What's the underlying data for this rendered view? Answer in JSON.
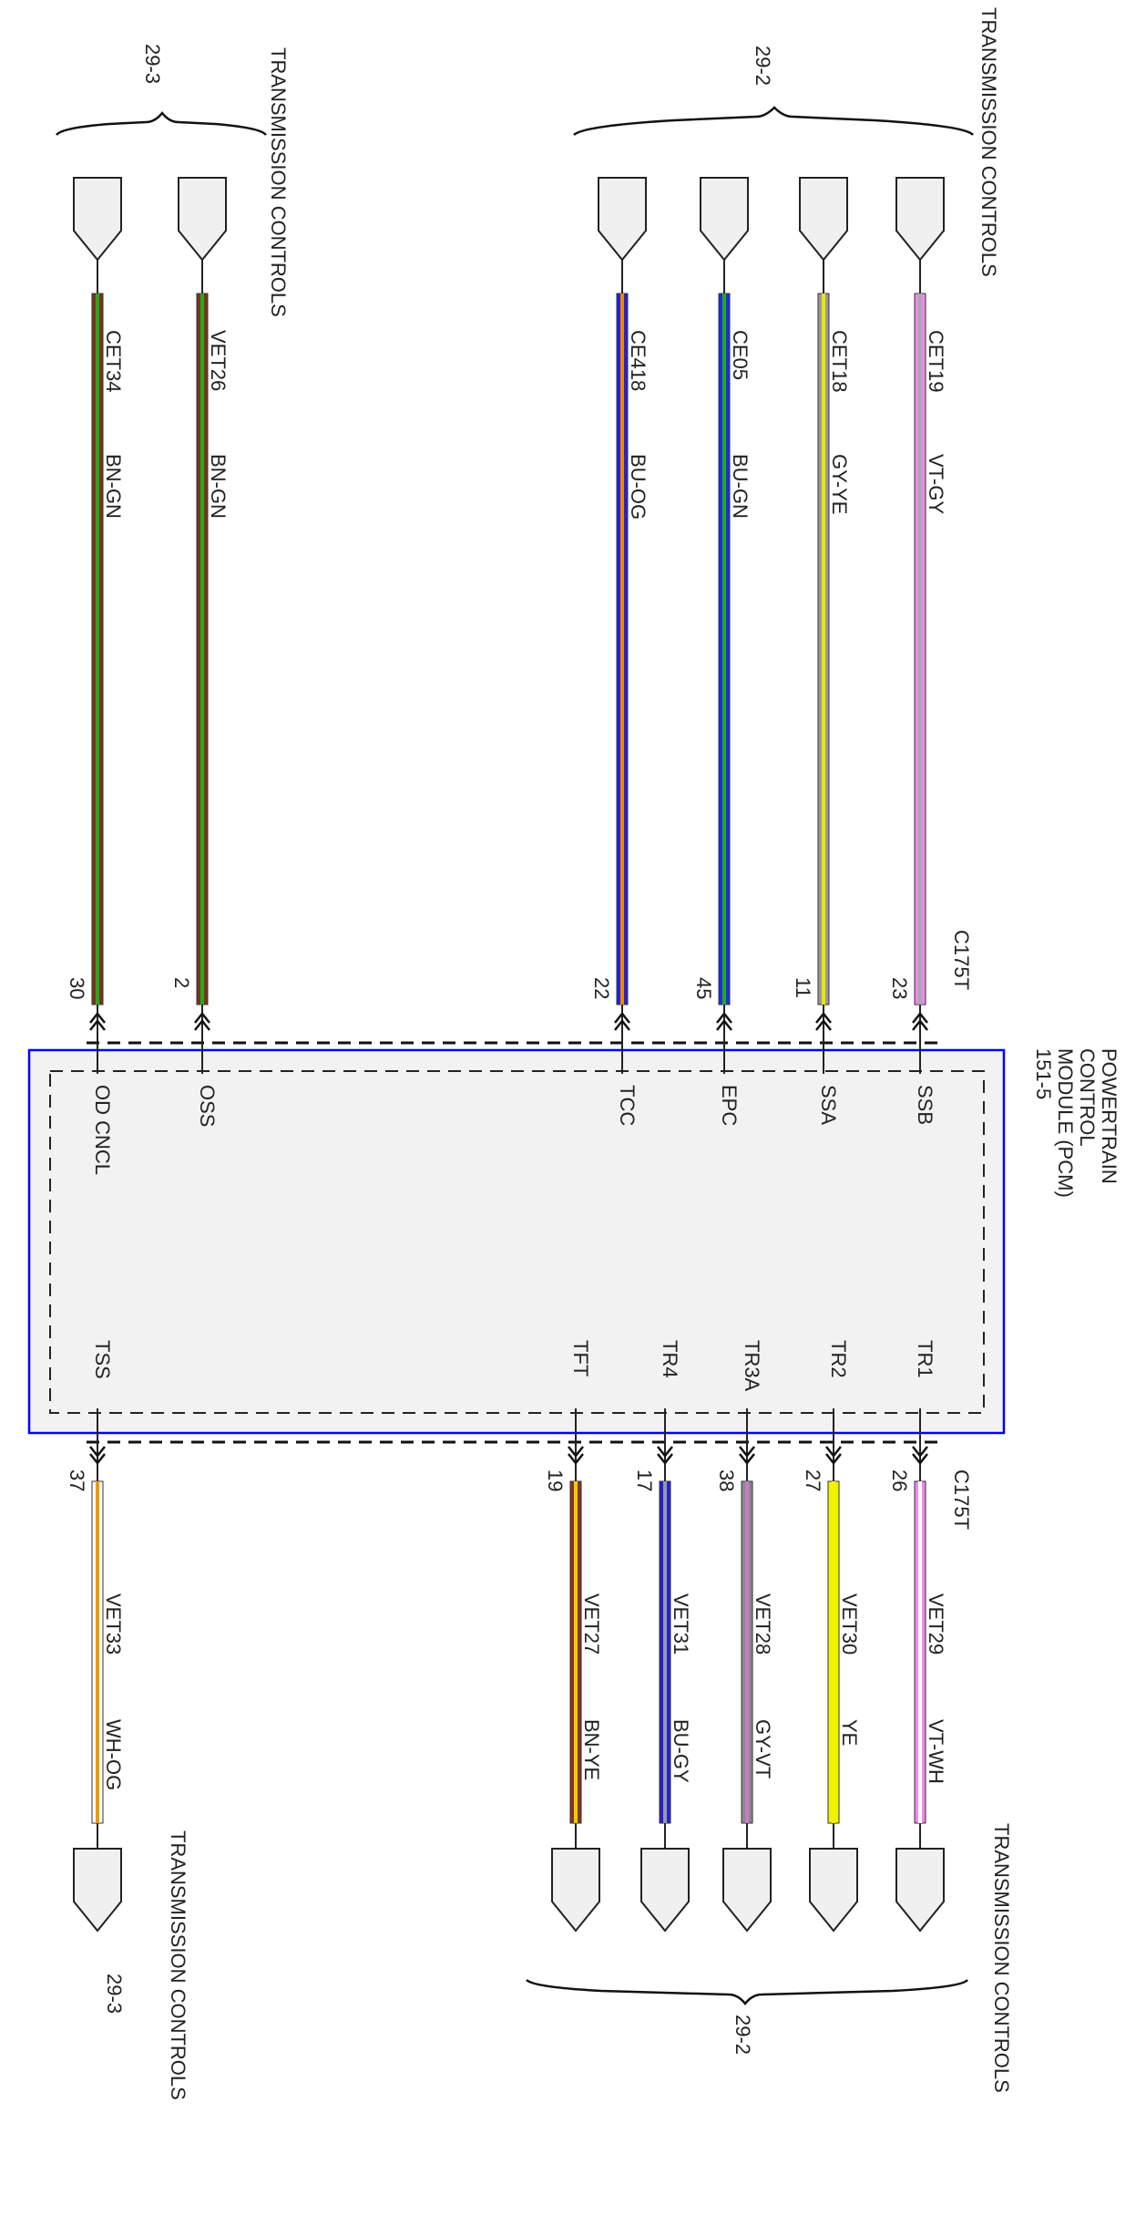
{
  "module": {
    "name_lines": [
      "POWERTRAIN",
      "CONTROL",
      "MODULE (PCM)",
      "151-5"
    ],
    "outline_color": "#0000ff"
  },
  "groups": {
    "top_right": {
      "title": "TRANSMISSION CONTROLS",
      "ref": "29-2"
    },
    "top_left": {
      "title": "TRANSMISSION CONTROLS",
      "ref": "29-3"
    },
    "bottom_right": {
      "title": "TRANSMISSION CONTROLS",
      "ref": "29-2"
    },
    "bottom_left": {
      "title": "TRANSMISSION CONTROLS",
      "ref": "29-3"
    }
  },
  "connectors": {
    "top": "C175T",
    "bottom": "C175T"
  },
  "top_wires": [
    {
      "signal": "SSB",
      "pin": "23",
      "circuit": "CET19",
      "color_code": "VT-GY",
      "base": "#ee88ee",
      "stripe": "#aaaaaa"
    },
    {
      "signal": "SSA",
      "pin": "11",
      "circuit": "CET18",
      "color_code": "GY-YE",
      "base": "#999999",
      "stripe": "#e8e800"
    },
    {
      "signal": "EPC",
      "pin": "45",
      "circuit": "CE05",
      "color_code": "BU-GN",
      "base": "#1e2ee0",
      "stripe": "#22aa22"
    },
    {
      "signal": "TCC",
      "pin": "22",
      "circuit": "CE418",
      "color_code": "BU-OG",
      "base": "#2222dd",
      "stripe": "#ee8800"
    },
    {
      "signal": "OSS",
      "pin": "2",
      "circuit": "VET26",
      "color_code": "BN-GN",
      "base": "#7a3418",
      "stripe": "#22aa22"
    },
    {
      "signal": "OD CNCL",
      "pin": "30",
      "circuit": "CET34",
      "color_code": "BN-GN",
      "base": "#7a3418",
      "stripe": "#22aa22"
    }
  ],
  "bottom_wires": [
    {
      "signal": "TR1",
      "pin": "26",
      "circuit": "VET29",
      "color_code": "VT-WH",
      "base": "#ee88ee",
      "stripe": "#ffffff"
    },
    {
      "signal": "TR2",
      "pin": "27",
      "circuit": "VET30",
      "color_code": "YE",
      "base": "#f2f200",
      "stripe": "#f2f200"
    },
    {
      "signal": "TR3A",
      "pin": "38",
      "circuit": "VET28",
      "color_code": "GY-VT",
      "base": "#8a8a8a",
      "stripe": "#cc77cc"
    },
    {
      "signal": "TR4",
      "pin": "17",
      "circuit": "VET31",
      "color_code": "BU-GY",
      "base": "#2222dd",
      "stripe": "#999999"
    },
    {
      "signal": "TFT",
      "pin": "19",
      "circuit": "VET27",
      "color_code": "BN-YE",
      "base": "#8a3418",
      "stripe": "#e8d000"
    },
    {
      "signal": "TSS",
      "pin": "37",
      "circuit": "VET33",
      "color_code": "WH-OG",
      "base": "#ffffff",
      "stripe": "#ee9900"
    }
  ]
}
